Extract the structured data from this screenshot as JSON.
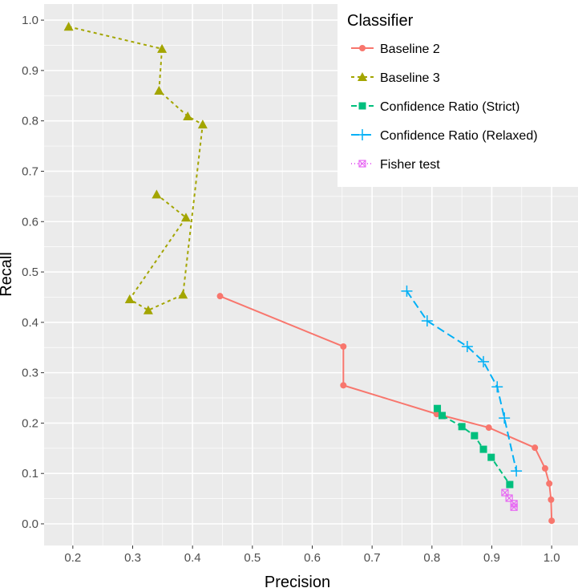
{
  "chart_data": {
    "type": "line",
    "xlabel": "Precision",
    "ylabel": "Recall",
    "xlim": [
      0.152,
      1.044
    ],
    "ylim": [
      -0.043,
      1.032
    ],
    "xticks": [
      "0.2",
      "0.3",
      "0.4",
      "0.5",
      "0.6",
      "0.7",
      "0.8",
      "0.9",
      "1.0"
    ],
    "yticks": [
      "0.0",
      "0.1",
      "0.2",
      "0.3",
      "0.4",
      "0.5",
      "0.6",
      "0.7",
      "0.8",
      "0.9",
      "1.0"
    ],
    "legend_title": "Classifier",
    "legend_position": "top-right",
    "grid": true,
    "series": [
      {
        "name": "Baseline 2",
        "color": "#F8766D",
        "marker": "circle",
        "dash": "",
        "x": [
          0.446,
          0.652,
          0.652,
          0.808,
          0.895,
          0.972,
          0.989,
          0.996,
          0.999,
          1.0
        ],
        "y": [
          0.452,
          0.352,
          0.275,
          0.218,
          0.191,
          0.151,
          0.11,
          0.08,
          0.048,
          0.006
        ]
      },
      {
        "name": "Baseline 3",
        "color": "#A3A500",
        "marker": "triangle",
        "dash": "4,4",
        "x": [
          0.193,
          0.349,
          0.344,
          0.392,
          0.417,
          0.384,
          0.326,
          0.295,
          0.389,
          0.34
        ],
        "y": [
          0.987,
          0.943,
          0.86,
          0.809,
          0.793,
          0.455,
          0.424,
          0.446,
          0.608,
          0.654
        ]
      },
      {
        "name": "Confidence Ratio (Strict)",
        "color": "#00BF7D",
        "marker": "square",
        "dash": "7,4",
        "x": [
          0.809,
          0.817,
          0.85,
          0.871,
          0.886,
          0.899,
          0.93
        ],
        "y": [
          0.229,
          0.215,
          0.193,
          0.175,
          0.148,
          0.132,
          0.078
        ]
      },
      {
        "name": "Confidence Ratio (Relaxed)",
        "color": "#00B0F6",
        "marker": "plus",
        "dash": "10,5",
        "x": [
          0.758,
          0.792,
          0.859,
          0.886,
          0.909,
          0.921,
          0.941
        ],
        "y": [
          0.462,
          0.403,
          0.352,
          0.322,
          0.272,
          0.21,
          0.105
        ]
      },
      {
        "name": "Fisher test",
        "color": "#E76BF3",
        "marker": "squarex",
        "dash": "1,3",
        "x": [
          0.922,
          0.929,
          0.937,
          0.937
        ],
        "y": [
          0.062,
          0.051,
          0.04,
          0.033
        ]
      }
    ]
  }
}
